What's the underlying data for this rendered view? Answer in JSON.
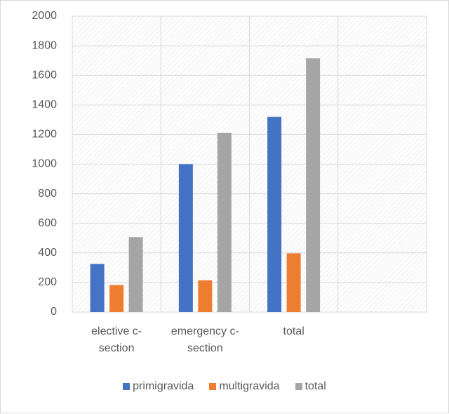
{
  "chart_data": {
    "type": "bar",
    "categories": [
      "elective c-section",
      "emergency c-section",
      "total",
      null
    ],
    "series": [
      {
        "name": "primigravida",
        "color": "#4472c4",
        "values": [
          325,
          1000,
          1320,
          null
        ]
      },
      {
        "name": "multigravida",
        "color": "#ed7d31",
        "values": [
          183,
          215,
          397,
          null
        ]
      },
      {
        "name": "total",
        "color": "#a5a5a5",
        "values": [
          507,
          1212,
          1715,
          null
        ]
      }
    ],
    "ylim": [
      0,
      2000
    ],
    "yticks": [
      0,
      200,
      400,
      600,
      800,
      1000,
      1200,
      1400,
      1600,
      1800,
      2000
    ],
    "grid": true,
    "legend": "bottom"
  }
}
